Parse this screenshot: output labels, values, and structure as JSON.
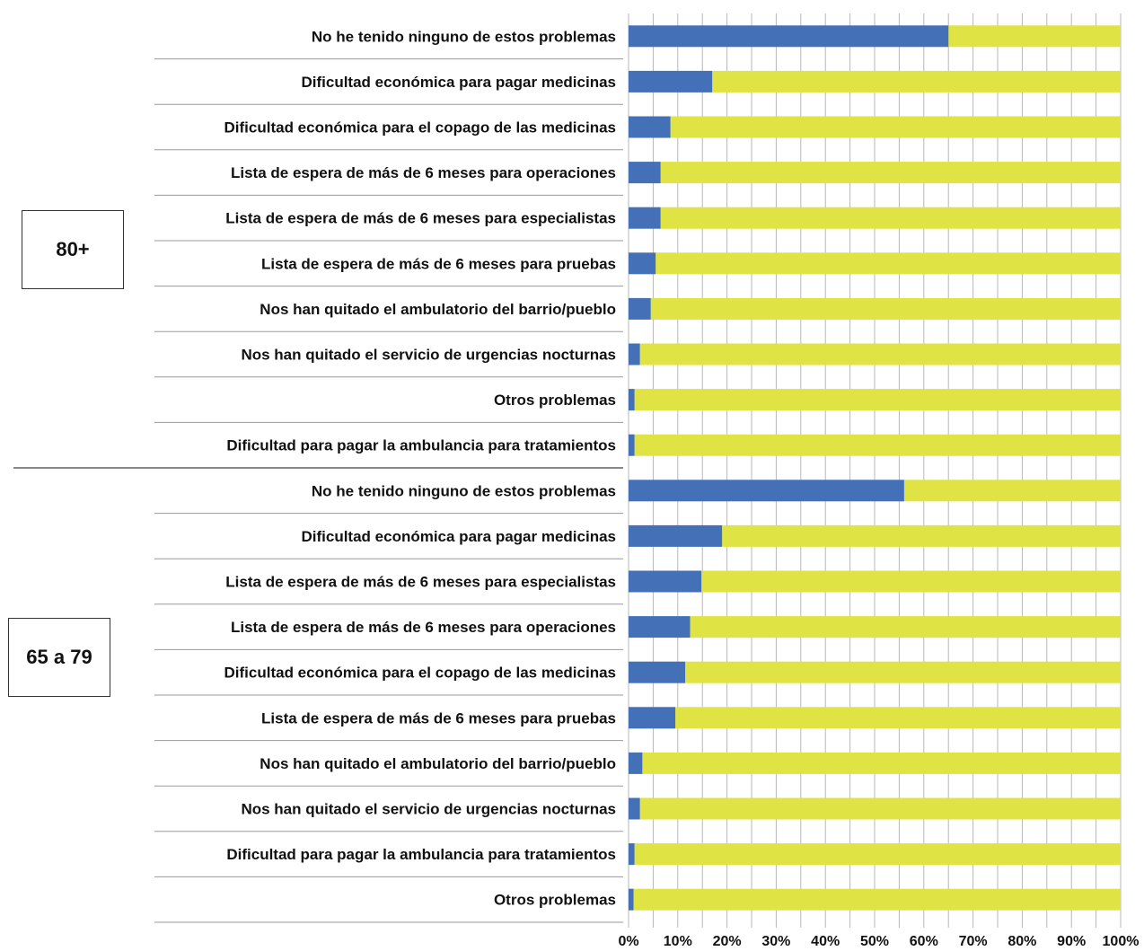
{
  "chart_data": {
    "type": "bar",
    "orientation": "horizontal",
    "stacked": true,
    "percent_stacked": true,
    "xlim": [
      0,
      100
    ],
    "x_tick_labels": [
      "0%",
      "10%",
      "20%",
      "30%",
      "40%",
      "50%",
      "60%",
      "70%",
      "80%",
      "90%",
      "100%"
    ],
    "grid": true,
    "legend": "none",
    "colors": {
      "yes": "#4470b8",
      "rest": "#dfe343"
    },
    "groups": [
      {
        "label": "80+",
        "categories": [
          "No he tenido ninguno de estos problemas",
          "Dificultad económica para pagar medicinas",
          "Dificultad económica para el copago de las medicinas",
          "Lista de espera de más de 6 meses para operaciones",
          "Lista de espera de más de 6 meses para especialistas",
          "Lista de espera de más de 6 meses para pruebas",
          "Nos han quitado el ambulatorio del barrio/pueblo",
          "Nos han quitado el servicio de urgencias nocturnas",
          "Otros problemas",
          "Dificultad para pagar la ambulancia para tratamientos"
        ],
        "values": [
          65,
          17,
          8.5,
          6.5,
          6.5,
          5.5,
          4.5,
          2.3,
          1.2,
          1.2
        ]
      },
      {
        "label": "65 a 79",
        "categories": [
          "No he tenido ninguno de estos problemas",
          "Dificultad económica para pagar medicinas",
          "Lista de espera de más de 6 meses para especialistas",
          "Lista de espera de más de 6 meses para operaciones",
          "Dificultad económica para el copago de las medicinas",
          "Lista de espera de más de 6 meses para pruebas",
          "Nos han quitado el ambulatorio del barrio/pueblo",
          "Nos han quitado el servicio de urgencias nocturnas",
          "Dificultad para pagar la ambulancia para tratamientos",
          "Otros problemas"
        ],
        "values": [
          56,
          19,
          14.8,
          12.5,
          11.5,
          9.5,
          2.8,
          2.3,
          1.2,
          1.0
        ]
      }
    ]
  }
}
